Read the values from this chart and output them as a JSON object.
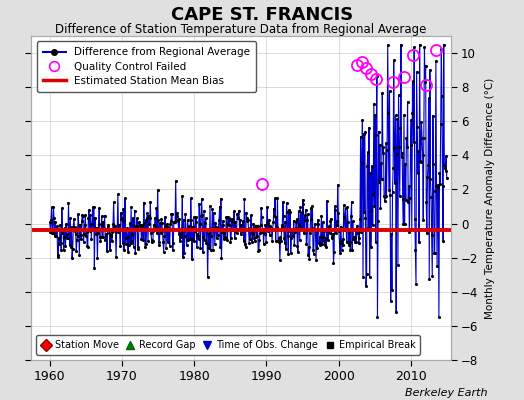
{
  "title": "CAPE ST. FRANCIS",
  "subtitle": "Difference of Station Temperature Data from Regional Average",
  "ylabel": "Monthly Temperature Anomaly Difference (°C)",
  "credit": "Berkeley Earth",
  "xlim": [
    1957.5,
    2015.5
  ],
  "ylim": [
    -8,
    11
  ],
  "yticks": [
    -8,
    -6,
    -4,
    -2,
    0,
    2,
    4,
    6,
    8,
    10
  ],
  "xticks": [
    1960,
    1970,
    1980,
    1990,
    2000,
    2010
  ],
  "mean_bias": -0.35,
  "background_color": "#e0e0e0",
  "plot_bg_color": "#ffffff",
  "line_color": "#0000cc",
  "bias_color": "#dd0000",
  "qc_color": "#ff00ff",
  "seed": 42,
  "phase1_start": 1960,
  "phase1_end": 2003,
  "phase2_start": 2003,
  "phase2_end": 2015,
  "phase1_std": 0.85,
  "phase1_clip_lo": -3.2,
  "phase1_clip_hi": 2.5,
  "phase2_mean": 3.2,
  "phase2_std": 3.8,
  "phase2_clip_lo": -5.5,
  "phase2_clip_hi": 10.5,
  "qc_times_p1": [
    1989.42
  ],
  "qc_values_p1": [
    2.3
  ],
  "qc_times_p2": [
    2002.5,
    2003.25,
    2003.83,
    2004.5,
    2005.2,
    2007.5,
    2009.0,
    2010.3,
    2012.1,
    2013.5
  ],
  "qc_values_p2": [
    9.3,
    9.5,
    9.1,
    8.8,
    8.5,
    8.3,
    8.6,
    9.9,
    8.1,
    10.2
  ]
}
